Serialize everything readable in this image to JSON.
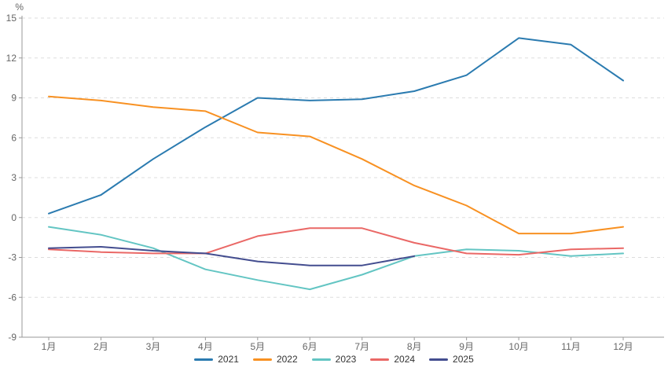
{
  "chart_data": {
    "type": "line",
    "title": "",
    "xlabel": "",
    "ylabel": "%",
    "categories": [
      "1月",
      "2月",
      "3月",
      "4月",
      "5月",
      "6月",
      "7月",
      "8月",
      "9月",
      "10月",
      "11月",
      "12月"
    ],
    "series": [
      {
        "name": "2021",
        "color": "#2b7bb0",
        "values": [
          0.3,
          1.7,
          4.4,
          6.8,
          9.0,
          8.8,
          8.9,
          9.5,
          10.7,
          13.5,
          13.0,
          10.3
        ]
      },
      {
        "name": "2022",
        "color": "#f89122",
        "values": [
          9.1,
          8.8,
          8.3,
          8.0,
          6.4,
          6.1,
          4.4,
          2.4,
          0.9,
          -1.2,
          -1.2,
          -0.7
        ]
      },
      {
        "name": "2023",
        "color": "#63c5c3",
        "values": [
          -0.7,
          -1.3,
          -2.3,
          -3.9,
          -4.7,
          -5.4,
          -4.3,
          -2.9,
          -2.4,
          -2.5,
          -2.9,
          -2.7
        ]
      },
      {
        "name": "2024",
        "color": "#ea6866",
        "values": [
          -2.4,
          -2.6,
          -2.7,
          -2.7,
          -1.4,
          -0.8,
          -0.8,
          -1.9,
          -2.7,
          -2.8,
          -2.4,
          -2.3
        ]
      },
      {
        "name": "2025",
        "color": "#434d8f",
        "values": [
          -2.3,
          -2.2,
          -2.5,
          -2.7,
          -3.3,
          -3.6,
          -3.6,
          -2.9
        ]
      }
    ],
    "ylim": [
      -9,
      15
    ],
    "ytick_interval": 3,
    "ytick_labels": [
      "-9",
      "-6",
      "-3",
      "0",
      "3",
      "6",
      "9",
      "12",
      "15"
    ],
    "grid": true,
    "grid_style": "dashed",
    "legend_position": "bottom-center",
    "grid_color": "#dddddd",
    "axis_color": "#999999",
    "tick_label_color": "#666666",
    "legend_text_color": "#333333",
    "line_width": 2
  }
}
